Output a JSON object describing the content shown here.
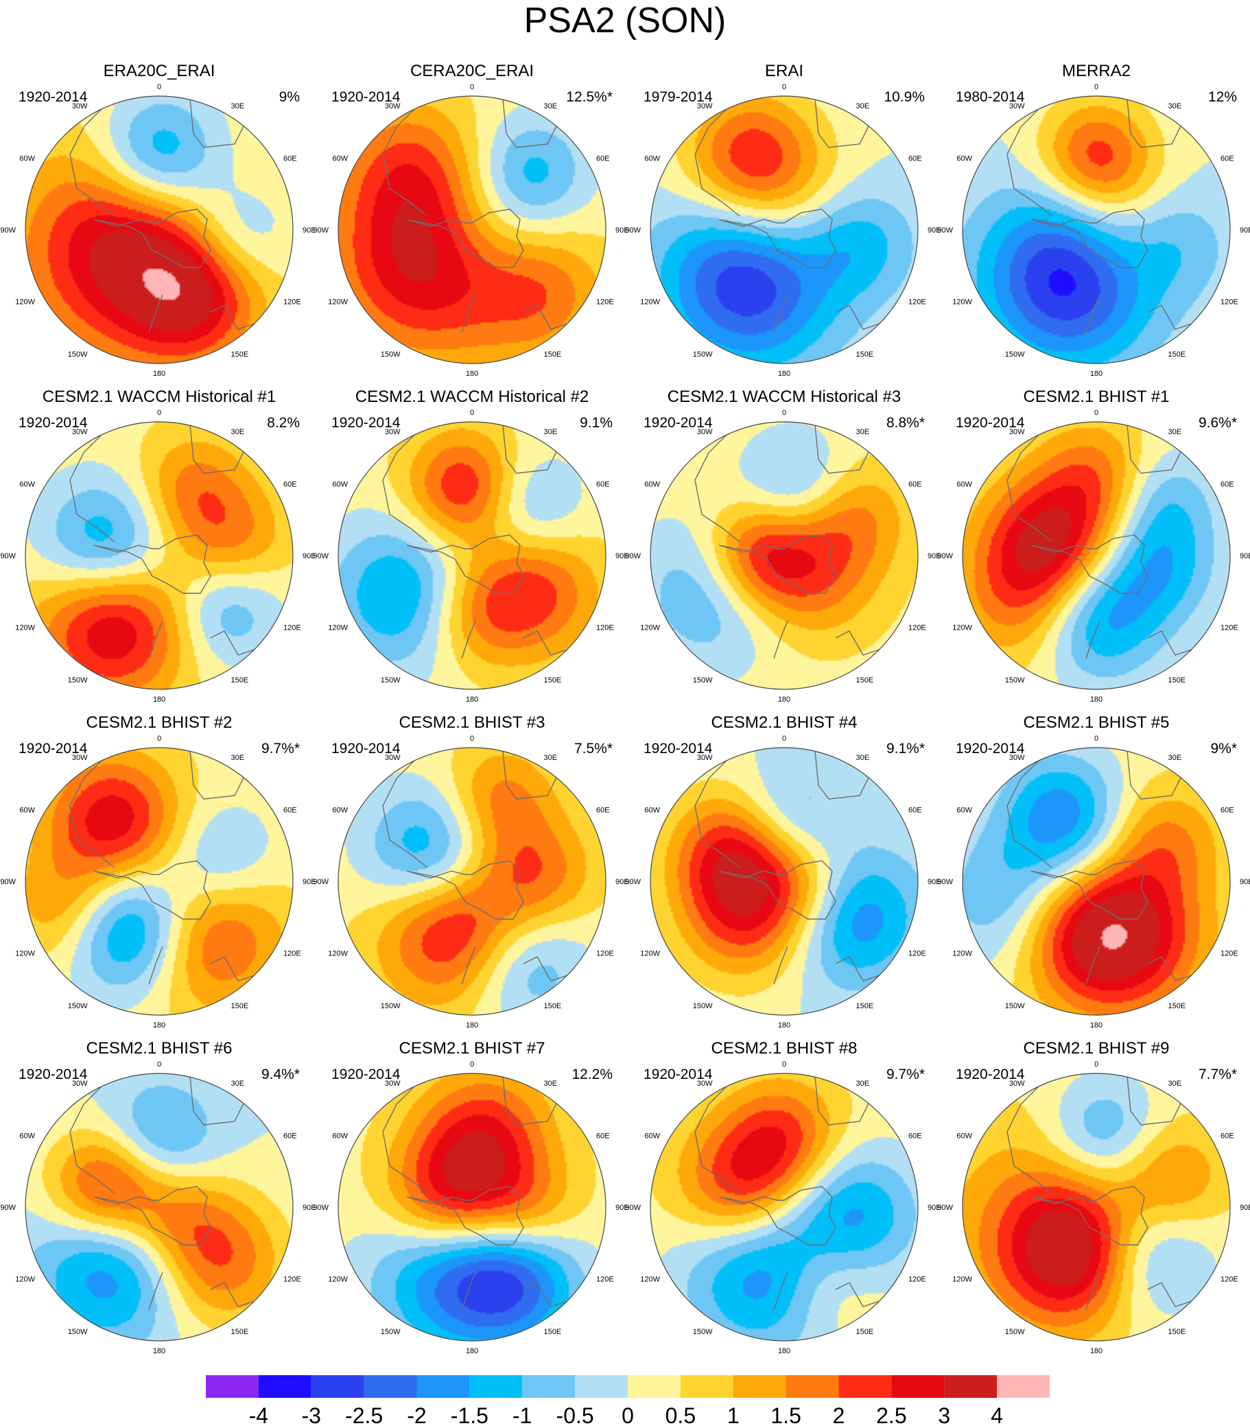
{
  "title": "PSA2 (SON)",
  "colors": {
    "palette": [
      "#8a28ef",
      "#1e0dff",
      "#2b40ee",
      "#2f6cf0",
      "#1c96fa",
      "#00bff9",
      "#6ec6f4",
      "#b3dff4",
      "#fff59c",
      "#ffd330",
      "#ffa80a",
      "#ff7a10",
      "#ff2c15",
      "#e80812",
      "#cc1d1d",
      "#ffb6b6"
    ],
    "coast": "#6e6e6e",
    "border": "#444444"
  },
  "colorbar": {
    "tick_labels": [
      "-4",
      "-3",
      "-2.5",
      "-2",
      "-1.5",
      "-1",
      "-0.5",
      "0",
      "0.5",
      "1",
      "1.5",
      "2",
      "2.5",
      "3",
      "4"
    ]
  },
  "map_labels": {
    "lon_top": "0",
    "lon_30e": "30E",
    "lon_60e": "60E",
    "lon_90e": "90E",
    "lon_120e": "120E",
    "lon_150e": "150E",
    "lon_180": "180",
    "lon_150w": "150W",
    "lon_120w": "120W",
    "lon_90w": "90W",
    "lon_60w": "60W",
    "lon_30w": "30W"
  },
  "panels": [
    {
      "title": "ERA20C_ERAI",
      "period": "1920-2014",
      "percent": "9%",
      "bg": 0.5,
      "blobs": [
        [
          -0.25,
          0.15,
          3.0,
          0.55
        ],
        [
          0.0,
          -0.55,
          2.4,
          0.33
        ],
        [
          0.25,
          0.5,
          2.1,
          0.35
        ],
        [
          0.55,
          0.05,
          1.4,
          0.3
        ]
      ]
    },
    {
      "title": "CERA20C_ERAI",
      "period": "1920-2014",
      "percent": "12.5%*",
      "bg": 0.5,
      "blobs": [
        [
          -0.3,
          0.2,
          3.3,
          0.5
        ],
        [
          0.15,
          0.05,
          1.5,
          0.4
        ],
        [
          0.5,
          0.45,
          1.6,
          0.35
        ],
        [
          0.45,
          -0.45,
          1.4,
          0.3
        ],
        [
          -0.5,
          -0.5,
          1.2,
          0.35
        ]
      ]
    },
    {
      "title": "ERAI",
      "period": "1979-2014",
      "percent": "10.9%",
      "bg": 0.0,
      "blobs": [
        [
          -0.25,
          -0.55,
          2.3,
          0.35
        ],
        [
          -0.25,
          0.35,
          3.4,
          0.45
        ],
        [
          0.0,
          -0.05,
          1.3,
          0.4
        ],
        [
          0.55,
          0.1,
          1.3,
          0.3
        ]
      ]
    },
    {
      "title": "MERRA2",
      "period": "1980-2014",
      "percent": "12%",
      "bg": 0.0,
      "blobs": [
        [
          0.0,
          -0.55,
          2.3,
          0.3
        ],
        [
          -0.2,
          0.35,
          3.4,
          0.45
        ],
        [
          0.25,
          0.05,
          1.3,
          0.35
        ],
        [
          0.55,
          0.1,
          1.2,
          0.3
        ]
      ]
    },
    {
      "title": "CESM2.1 WACCM Historical #1",
      "period": "1920-2014",
      "percent": "8.2%",
      "bg": 0.5,
      "blobs": [
        [
          -0.35,
          0.5,
          3.0,
          0.4
        ],
        [
          -0.4,
          -0.05,
          2.3,
          0.35
        ],
        [
          0.25,
          -0.5,
          1.4,
          0.3
        ],
        [
          0.5,
          0.4,
          1.4,
          0.3
        ],
        [
          0.55,
          -0.1,
          1.3,
          0.3
        ]
      ]
    },
    {
      "title": "CESM2.1 WACCM Historical #2",
      "period": "1920-2014",
      "percent": "9.1%",
      "bg": 0.5,
      "blobs": [
        [
          -0.05,
          -0.5,
          2.4,
          0.3
        ],
        [
          -0.5,
          0.3,
          2.0,
          0.4
        ],
        [
          0.45,
          0.25,
          2.0,
          0.35
        ],
        [
          0.4,
          -0.35,
          1.4,
          0.3
        ],
        [
          0.0,
          0.45,
          1.3,
          0.3
        ]
      ]
    },
    {
      "title": "CESM2.1 WACCM Historical #3",
      "period": "1920-2014",
      "percent": "8.8%*",
      "bg": 0.5,
      "blobs": [
        [
          -0.2,
          0.0,
          2.4,
          0.3
        ],
        [
          0.1,
          -0.5,
          1.4,
          0.3
        ],
        [
          0.2,
          0.15,
          1.5,
          0.35
        ],
        [
          -0.5,
          0.25,
          1.6,
          0.4
        ],
        [
          0.5,
          -0.3,
          1.3,
          0.3
        ]
      ]
    },
    {
      "title": "CESM2.1 BHIST #1",
      "period": "1920-2014",
      "percent": "9.6%*",
      "bg": 0.5,
      "blobs": [
        [
          -0.35,
          -0.1,
          2.8,
          0.35
        ],
        [
          0.0,
          0.45,
          2.2,
          0.35
        ],
        [
          0.0,
          -0.6,
          1.4,
          0.3
        ],
        [
          0.5,
          0.1,
          1.3,
          0.3
        ],
        [
          -0.55,
          0.35,
          1.4,
          0.35
        ],
        [
          0.5,
          -0.4,
          1.2,
          0.3
        ]
      ]
    },
    {
      "title": "CESM2.1 BHIST #2",
      "period": "1920-2014",
      "percent": "9.7%*",
      "bg": 0.5,
      "blobs": [
        [
          -0.35,
          -0.45,
          2.6,
          0.35
        ],
        [
          -0.2,
          0.35,
          2.8,
          0.35
        ],
        [
          0.35,
          0.4,
          2.2,
          0.4
        ],
        [
          0.45,
          -0.15,
          1.3,
          0.3
        ],
        [
          -0.7,
          0.2,
          1.3,
          0.3
        ]
      ]
    },
    {
      "title": "CESM2.1 BHIST #3",
      "period": "1920-2014",
      "percent": "7.5%*",
      "bg": 0.5,
      "blobs": [
        [
          -0.1,
          0.35,
          3.0,
          0.4
        ],
        [
          -0.3,
          -0.2,
          2.3,
          0.35
        ],
        [
          0.2,
          -0.6,
          1.5,
          0.3
        ],
        [
          0.35,
          0.6,
          1.8,
          0.35
        ],
        [
          0.5,
          -0.05,
          1.4,
          0.3
        ]
      ]
    },
    {
      "title": "CESM2.1 BHIST #4",
      "period": "1920-2014",
      "percent": "9.1%*",
      "bg": 0.0,
      "blobs": [
        [
          -0.35,
          -0.2,
          2.8,
          0.35
        ],
        [
          0.5,
          0.25,
          2.2,
          0.35
        ],
        [
          -0.3,
          0.3,
          1.8,
          0.35
        ],
        [
          0.0,
          -0.45,
          1.4,
          0.3
        ],
        [
          0.2,
          0.05,
          1.3,
          0.3
        ]
      ]
    },
    {
      "title": "CESM2.1 BHIST #5",
      "period": "1920-2014",
      "percent": "9%*",
      "bg": 0.5,
      "blobs": [
        [
          -0.05,
          0.35,
          3.0,
          0.4
        ],
        [
          -0.6,
          0.15,
          1.6,
          0.4
        ],
        [
          0.3,
          0.45,
          1.6,
          0.4
        ],
        [
          -0.15,
          -0.3,
          1.3,
          0.35
        ],
        [
          0.5,
          -0.3,
          1.3,
          0.3
        ],
        [
          -0.3,
          -0.6,
          1.2,
          0.3
        ]
      ]
    },
    {
      "title": "CESM2.1 BHIST #6",
      "period": "1920-2014",
      "percent": "9.4%*",
      "bg": 0.0,
      "blobs": [
        [
          -0.4,
          -0.15,
          2.6,
          0.3
        ],
        [
          -0.35,
          0.45,
          2.0,
          0.4
        ],
        [
          0.45,
          0.4,
          2.0,
          0.35
        ],
        [
          0.0,
          -0.5,
          1.4,
          0.3
        ],
        [
          0.1,
          0.05,
          1.3,
          0.3
        ]
      ]
    },
    {
      "title": "CESM2.1 BHIST #7",
      "period": "1920-2014",
      "percent": "12.2%",
      "bg": 0.5,
      "blobs": [
        [
          -0.15,
          -0.05,
          3.0,
          0.35
        ],
        [
          -0.1,
          0.45,
          2.8,
          0.45
        ],
        [
          0.1,
          -0.55,
          2.0,
          0.35
        ],
        [
          0.35,
          0.55,
          1.8,
          0.35
        ],
        [
          0.4,
          0.05,
          1.5,
          0.3
        ]
      ]
    },
    {
      "title": "CESM2.1 BHIST #8",
      "period": "1920-2014",
      "percent": "9.7%*",
      "bg": 0.5,
      "blobs": [
        [
          -0.3,
          -0.15,
          2.6,
          0.35
        ],
        [
          -0.1,
          0.45,
          2.6,
          0.45
        ],
        [
          0.0,
          -0.55,
          1.6,
          0.3
        ],
        [
          0.55,
          0.05,
          1.6,
          0.35
        ],
        [
          0.3,
          0.55,
          1.3,
          0.3
        ]
      ]
    },
    {
      "title": "CESM2.1 BHIST #9",
      "period": "1920-2014",
      "percent": "7.7%*",
      "bg": 0.5,
      "blobs": [
        [
          -0.15,
          0.35,
          2.6,
          0.35
        ],
        [
          0.35,
          0.35,
          1.8,
          0.35
        ],
        [
          -0.35,
          0.15,
          1.5,
          0.55
        ],
        [
          0.05,
          -0.55,
          1.6,
          0.3
        ],
        [
          0.55,
          -0.2,
          1.3,
          0.3
        ]
      ]
    }
  ]
}
